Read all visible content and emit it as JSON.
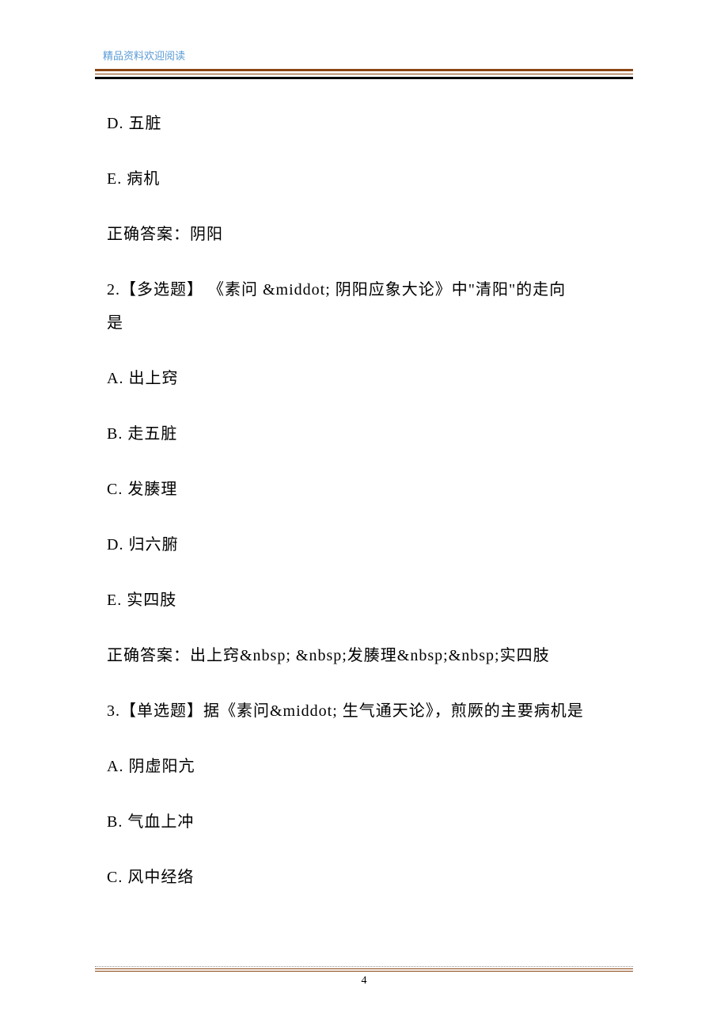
{
  "header": {
    "text": "精品资料欢迎阅读"
  },
  "content": {
    "lines": [
      "D. 五脏",
      "E. 病机",
      "正确答案：阴阳"
    ],
    "q2": {
      "prefix": "2.【多选题】 《素问 &middot;  阴阳应象大论》中\"清阳\"的走向",
      "suffix": "是",
      "options": [
        "A. 出上窍",
        "B. 走五脏",
        "C. 发腠理",
        "D.  归六腑",
        "E. 实四肢"
      ],
      "answer": "正确答案：出上窍&nbsp; &nbsp;发腠理&nbsp;&nbsp;实四肢"
    },
    "q3": {
      "text": "3.【单选题】据《素问&middot;  生气通天论》，煎厥的主要病机是",
      "options": [
        "A. 阴虚阳亢",
        "B. 气血上冲",
        "C. 风中经络"
      ]
    }
  },
  "footer": {
    "pageNumber": "4"
  }
}
